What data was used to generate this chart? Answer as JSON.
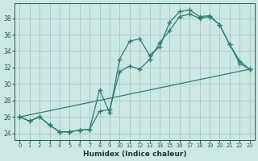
{
  "xlabel": "Humidex (Indice chaleur)",
  "bg_color": "#cce8e5",
  "grid_color": "#aaccca",
  "line_color": "#2d7d6e",
  "xlim": [
    -0.5,
    23.5
  ],
  "ylim": [
    23.2,
    39.8
  ],
  "xticks": [
    0,
    1,
    2,
    3,
    4,
    5,
    6,
    7,
    8,
    9,
    10,
    11,
    12,
    13,
    14,
    15,
    16,
    17,
    18,
    19,
    20,
    21,
    22,
    23
  ],
  "yticks": [
    24,
    26,
    28,
    30,
    32,
    34,
    36,
    38
  ],
  "line1_x": [
    0,
    1,
    2,
    3,
    4,
    5,
    6,
    7,
    8,
    9,
    10,
    11,
    12,
    13,
    14,
    15,
    16,
    17,
    18,
    19,
    20,
    21,
    22,
    23
  ],
  "line1_y": [
    26.0,
    25.5,
    26.0,
    25.0,
    24.2,
    24.2,
    24.4,
    24.5,
    29.3,
    26.5,
    33.0,
    35.2,
    35.5,
    33.5,
    34.5,
    37.5,
    38.8,
    39.0,
    38.2,
    38.3,
    37.2,
    34.8,
    32.8,
    31.8
  ],
  "line2_x": [
    0,
    1,
    2,
    3,
    4,
    5,
    6,
    7,
    8,
    9,
    10,
    11,
    12,
    13,
    14,
    15,
    16,
    17,
    18,
    19,
    20,
    21,
    22,
    23
  ],
  "line2_y": [
    26.0,
    25.5,
    26.0,
    25.0,
    24.2,
    24.2,
    24.4,
    24.5,
    26.7,
    26.9,
    31.5,
    32.2,
    31.8,
    33.0,
    35.0,
    36.5,
    38.2,
    38.5,
    38.0,
    38.2,
    37.2,
    34.8,
    32.5,
    31.8
  ],
  "line3_x": [
    0,
    23
  ],
  "line3_y": [
    26.0,
    31.8
  ]
}
